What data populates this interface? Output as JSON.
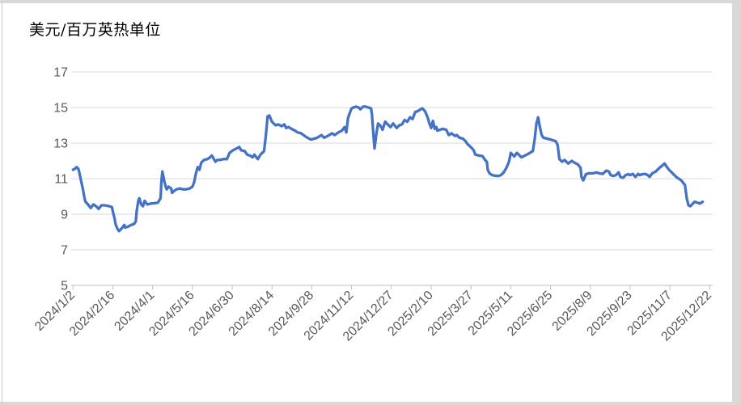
{
  "chart": {
    "title": "美元/百万英热单位"
  },
  "colors": {
    "series_line": "#4472C4",
    "gridline": "#d9d9d9",
    "axis_line": "#bfbfbf",
    "tick_mark": "#bfbfbf",
    "axis_text": "#595959",
    "title_text": "#000000",
    "worksheet_edge": "#d9d9d9"
  },
  "chart_data": {
    "type": "line",
    "title": "美元/百万英热单位",
    "xlabel": "",
    "ylabel": "",
    "ylim": [
      5,
      17
    ],
    "y_ticks": [
      5,
      7,
      9,
      11,
      13,
      15,
      17
    ],
    "x_tick_days": [
      0,
      45,
      90,
      135,
      180,
      225,
      270,
      315,
      360,
      405,
      450,
      495,
      540,
      585,
      630,
      675,
      720
    ],
    "x_tick_labels": [
      "2024/1/2",
      "2024/2/16",
      "2024/4/1",
      "2024/5/16",
      "2024/6/30",
      "2024/8/14",
      "2024/9/28",
      "2024/11/12",
      "2024/12/27",
      "2025/2/10",
      "2025/3/27",
      "2025/5/11",
      "2025/6/25",
      "2025/8/9",
      "2025/9/23",
      "2025/11/7",
      "2025/12/22"
    ],
    "grid": "horizontal",
    "legend": "none",
    "series": [
      {
        "color": "#4472C4",
        "points": [
          [
            0,
            11.5
          ],
          [
            2,
            11.55
          ],
          [
            4,
            11.65
          ],
          [
            6,
            11.55
          ],
          [
            7,
            11.35
          ],
          [
            9,
            10.9
          ],
          [
            11,
            10.45
          ],
          [
            13,
            9.9
          ],
          [
            14,
            9.7
          ],
          [
            16,
            9.6
          ],
          [
            20,
            9.35
          ],
          [
            23,
            9.55
          ],
          [
            26,
            9.45
          ],
          [
            29,
            9.3
          ],
          [
            32,
            9.5
          ],
          [
            36,
            9.5
          ],
          [
            41,
            9.45
          ],
          [
            44,
            9.4
          ],
          [
            45,
            9.15
          ],
          [
            47,
            8.75
          ],
          [
            48,
            8.45
          ],
          [
            50,
            8.2
          ],
          [
            52,
            8.05
          ],
          [
            55,
            8.2
          ],
          [
            58,
            8.4
          ],
          [
            59,
            8.25
          ],
          [
            62,
            8.3
          ],
          [
            66,
            8.4
          ],
          [
            69,
            8.45
          ],
          [
            71,
            8.6
          ],
          [
            72,
            9.2
          ],
          [
            74,
            9.8
          ],
          [
            75,
            9.9
          ],
          [
            77,
            9.55
          ],
          [
            79,
            9.45
          ],
          [
            81,
            9.75
          ],
          [
            84,
            9.55
          ],
          [
            88,
            9.6
          ],
          [
            92,
            9.62
          ],
          [
            96,
            9.65
          ],
          [
            99,
            9.9
          ],
          [
            100,
            10.9
          ],
          [
            101,
            11.4
          ],
          [
            103,
            10.9
          ],
          [
            105,
            10.5
          ],
          [
            106,
            10.4
          ],
          [
            108,
            10.55
          ],
          [
            111,
            10.45
          ],
          [
            112,
            10.2
          ],
          [
            114,
            10.3
          ],
          [
            117,
            10.4
          ],
          [
            121,
            10.45
          ],
          [
            124,
            10.4
          ],
          [
            128,
            10.4
          ],
          [
            132,
            10.45
          ],
          [
            135,
            10.55
          ],
          [
            137,
            10.8
          ],
          [
            139,
            11.3
          ],
          [
            141,
            11.65
          ],
          [
            143,
            11.5
          ],
          [
            145,
            11.9
          ],
          [
            148,
            12.05
          ],
          [
            152,
            12.1
          ],
          [
            155,
            12.2
          ],
          [
            157,
            12.3
          ],
          [
            161,
            11.95
          ],
          [
            163,
            12.05
          ],
          [
            166,
            12.05
          ],
          [
            170,
            12.1
          ],
          [
            174,
            12.1
          ],
          [
            177,
            12.45
          ],
          [
            181,
            12.6
          ],
          [
            185,
            12.7
          ],
          [
            188,
            12.78
          ],
          [
            190,
            12.6
          ],
          [
            194,
            12.55
          ],
          [
            197,
            12.35
          ],
          [
            200,
            12.3
          ],
          [
            203,
            12.2
          ],
          [
            205,
            12.35
          ],
          [
            209,
            12.1
          ],
          [
            212,
            12.35
          ],
          [
            216,
            12.55
          ],
          [
            218,
            13.4
          ],
          [
            220,
            14.5
          ],
          [
            222,
            14.55
          ],
          [
            225,
            14.2
          ],
          [
            229,
            14.0
          ],
          [
            232,
            14.05
          ],
          [
            236,
            13.95
          ],
          [
            239,
            14.05
          ],
          [
            241,
            13.85
          ],
          [
            244,
            13.9
          ],
          [
            247,
            13.8
          ],
          [
            251,
            13.7
          ],
          [
            254,
            13.6
          ],
          [
            258,
            13.55
          ],
          [
            262,
            13.4
          ],
          [
            265,
            13.3
          ],
          [
            269,
            13.2
          ],
          [
            273,
            13.25
          ],
          [
            276,
            13.3
          ],
          [
            281,
            13.45
          ],
          [
            284,
            13.3
          ],
          [
            288,
            13.4
          ],
          [
            293,
            13.55
          ],
          [
            296,
            13.45
          ],
          [
            300,
            13.6
          ],
          [
            304,
            13.7
          ],
          [
            307,
            13.9
          ],
          [
            309,
            13.6
          ],
          [
            311,
            14.4
          ],
          [
            313,
            14.7
          ],
          [
            315,
            14.95
          ],
          [
            317,
            15.0
          ],
          [
            320,
            15.05
          ],
          [
            323,
            15.0
          ],
          [
            325,
            14.9
          ],
          [
            328,
            15.05
          ],
          [
            331,
            15.05
          ],
          [
            334,
            15.0
          ],
          [
            337,
            14.95
          ],
          [
            338,
            14.6
          ],
          [
            340,
            13.3
          ],
          [
            341,
            12.7
          ],
          [
            343,
            13.5
          ],
          [
            345,
            14.1
          ],
          [
            348,
            13.95
          ],
          [
            350,
            13.75
          ],
          [
            353,
            14.2
          ],
          [
            356,
            14.05
          ],
          [
            359,
            13.9
          ],
          [
            362,
            14.1
          ],
          [
            366,
            13.85
          ],
          [
            369,
            14.0
          ],
          [
            372,
            14.05
          ],
          [
            375,
            14.3
          ],
          [
            378,
            14.2
          ],
          [
            381,
            14.45
          ],
          [
            384,
            14.35
          ],
          [
            387,
            14.75
          ],
          [
            390,
            14.8
          ],
          [
            393,
            14.9
          ],
          [
            395,
            14.95
          ],
          [
            398,
            14.8
          ],
          [
            401,
            14.45
          ],
          [
            403,
            14.1
          ],
          [
            405,
            13.85
          ],
          [
            407,
            14.25
          ],
          [
            409,
            13.8
          ],
          [
            411,
            13.9
          ],
          [
            412,
            13.7
          ],
          [
            415,
            13.75
          ],
          [
            418,
            13.8
          ],
          [
            422,
            13.75
          ],
          [
            425,
            13.45
          ],
          [
            428,
            13.55
          ],
          [
            432,
            13.4
          ],
          [
            434,
            13.45
          ],
          [
            437,
            13.3
          ],
          [
            441,
            13.25
          ],
          [
            444,
            13.1
          ],
          [
            446,
            12.95
          ],
          [
            450,
            12.77
          ],
          [
            453,
            12.6
          ],
          [
            455,
            12.35
          ],
          [
            459,
            12.3
          ],
          [
            463,
            12.27
          ],
          [
            466,
            12.05
          ],
          [
            468,
            11.95
          ],
          [
            469,
            11.5
          ],
          [
            471,
            11.3
          ],
          [
            474,
            11.2
          ],
          [
            477,
            11.17
          ],
          [
            481,
            11.15
          ],
          [
            484,
            11.2
          ],
          [
            487,
            11.35
          ],
          [
            490,
            11.6
          ],
          [
            493,
            11.95
          ],
          [
            495,
            12.45
          ],
          [
            499,
            12.25
          ],
          [
            502,
            12.45
          ],
          [
            507,
            12.2
          ],
          [
            511,
            12.3
          ],
          [
            515,
            12.4
          ],
          [
            520,
            12.55
          ],
          [
            522,
            13.2
          ],
          [
            524,
            14.1
          ],
          [
            526,
            14.45
          ],
          [
            528,
            13.9
          ],
          [
            530,
            13.45
          ],
          [
            532,
            13.3
          ],
          [
            536,
            13.25
          ],
          [
            540,
            13.2
          ],
          [
            543,
            13.15
          ],
          [
            546,
            13.1
          ],
          [
            548,
            12.9
          ],
          [
            550,
            12.1
          ],
          [
            553,
            11.95
          ],
          [
            556,
            12.05
          ],
          [
            560,
            11.85
          ],
          [
            564,
            12.0
          ],
          [
            567,
            11.9
          ],
          [
            571,
            11.8
          ],
          [
            574,
            11.6
          ],
          [
            575,
            11.1
          ],
          [
            577,
            10.9
          ],
          [
            580,
            11.25
          ],
          [
            583,
            11.3
          ],
          [
            585,
            11.3
          ],
          [
            588,
            11.3
          ],
          [
            592,
            11.35
          ],
          [
            595,
            11.3
          ],
          [
            599,
            11.27
          ],
          [
            603,
            11.45
          ],
          [
            606,
            11.4
          ],
          [
            608,
            11.2
          ],
          [
            611,
            11.15
          ],
          [
            614,
            11.2
          ],
          [
            617,
            11.35
          ],
          [
            619,
            11.1
          ],
          [
            622,
            11.05
          ],
          [
            625,
            11.2
          ],
          [
            628,
            11.25
          ],
          [
            630,
            11.2
          ],
          [
            633,
            11.27
          ],
          [
            636,
            11.1
          ],
          [
            639,
            11.27
          ],
          [
            641,
            11.2
          ],
          [
            644,
            11.25
          ],
          [
            647,
            11.27
          ],
          [
            650,
            11.2
          ],
          [
            652,
            11.1
          ],
          [
            655,
            11.3
          ],
          [
            659,
            11.4
          ],
          [
            663,
            11.6
          ],
          [
            669,
            11.85
          ],
          [
            671,
            11.7
          ],
          [
            674,
            11.5
          ],
          [
            677,
            11.35
          ],
          [
            680,
            11.2
          ],
          [
            682,
            11.1
          ],
          [
            685,
            11.0
          ],
          [
            688,
            10.9
          ],
          [
            691,
            10.7
          ],
          [
            692,
            10.65
          ],
          [
            694,
            9.9
          ],
          [
            696,
            9.5
          ],
          [
            698,
            9.45
          ],
          [
            701,
            9.6
          ],
          [
            703,
            9.7
          ],
          [
            706,
            9.65
          ],
          [
            709,
            9.6
          ],
          [
            712,
            9.7
          ]
        ]
      }
    ]
  }
}
